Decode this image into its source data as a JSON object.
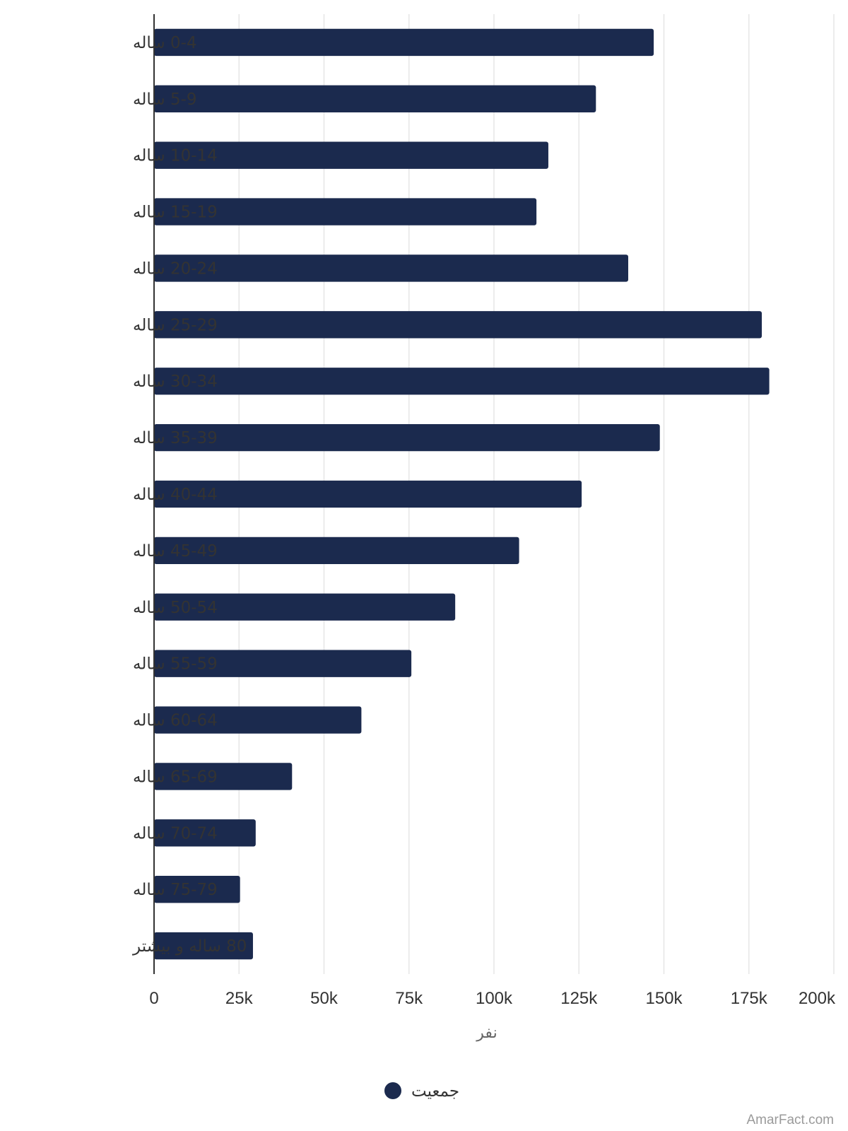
{
  "chart_data": {
    "type": "bar",
    "orientation": "horizontal",
    "categories": [
      "0-4 ساله",
      "5-9 ساله",
      "10-14 ساله",
      "15-19 ساله",
      "20-24 ساله",
      "25-29 ساله",
      "30-34 ساله",
      "35-39 ساله",
      "40-44 ساله",
      "45-49 ساله",
      "50-54 ساله",
      "55-59 ساله",
      "60-64 ساله",
      "65-69 ساله",
      "70-74 ساله",
      "75-79 ساله",
      "80 ساله و بیشتر"
    ],
    "series": [
      {
        "name": "جمعیت",
        "color": "#1b2a4e",
        "values": [
          147000,
          130000,
          116000,
          112500,
          139500,
          178800,
          181000,
          148800,
          125800,
          107400,
          88600,
          75700,
          61000,
          40600,
          29900,
          25300,
          29100
        ]
      }
    ],
    "xlabel": "نفر",
    "ylabel": "",
    "xlim": [
      0,
      200000
    ],
    "xticks": [
      {
        "value": 0,
        "label": "0"
      },
      {
        "value": 25000,
        "label": "25k"
      },
      {
        "value": 50000,
        "label": "50k"
      },
      {
        "value": 75000,
        "label": "75k"
      },
      {
        "value": 100000,
        "label": "100k"
      },
      {
        "value": 125000,
        "label": "125k"
      },
      {
        "value": 150000,
        "label": "150k"
      },
      {
        "value": 175000,
        "label": "175k"
      },
      {
        "value": 200000,
        "label": "200k"
      }
    ],
    "grid": true,
    "legend_position": "bottom",
    "colors": {
      "bar": "#1b2a4e",
      "grid": "#e6e6e6",
      "axis": "#333333"
    }
  },
  "watermark": "AmarFact.com"
}
